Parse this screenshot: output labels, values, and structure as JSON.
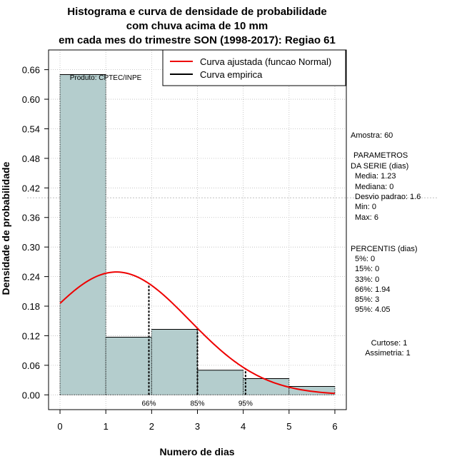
{
  "chart_data": {
    "type": "bar",
    "title_lines": [
      "Histograma e curva de densidade de probabilidade",
      "com chuva acima de 10 mm",
      "em cada mes do trimestre SON (1998-2017): Regiao 61"
    ],
    "xlabel": "Numero de dias",
    "ylabel": "Densidade de probabilidade",
    "xlim": [
      -0.25,
      6.25
    ],
    "ylim": [
      -0.03,
      0.7
    ],
    "x_ticks": [
      0,
      1,
      2,
      3,
      4,
      5,
      6
    ],
    "y_ticks": [
      0.0,
      0.06,
      0.12,
      0.18,
      0.24,
      0.3,
      0.36,
      0.42,
      0.48,
      0.54,
      0.6,
      0.66
    ],
    "y_tick_labels": [
      "0.00",
      "0.06",
      "0.12",
      "0.18",
      "0.24",
      "0.30",
      "0.36",
      "0.42",
      "0.48",
      "0.54",
      "0.60",
      "0.66"
    ],
    "bins": [
      {
        "from": 0,
        "to": 1,
        "density": 0.65
      },
      {
        "from": 1,
        "to": 2,
        "density": 0.117
      },
      {
        "from": 2,
        "to": 3,
        "density": 0.133
      },
      {
        "from": 3,
        "to": 4,
        "density": 0.05
      },
      {
        "from": 4,
        "to": 5,
        "density": 0.033
      },
      {
        "from": 5,
        "to": 6,
        "density": 0.017
      }
    ],
    "normal_fit": {
      "mean": 1.23,
      "sd": 1.6,
      "x_from": 0,
      "x_to": 6
    },
    "percentile_markers": [
      {
        "label": "66%",
        "x": 1.94
      },
      {
        "label": "85%",
        "x": 3
      },
      {
        "label": "95%",
        "x": 4.05
      }
    ],
    "reference_line_y": 0.4,
    "legend": [
      {
        "label": "Curva ajustada (funcao Normal)",
        "color": "#ee0000"
      },
      {
        "label": "Curva empirica",
        "color": "#000000"
      }
    ],
    "credit": "Produto: CPTEC/INPE"
  },
  "colors": {
    "bar_fill": "#b4cdcd",
    "curve": "#ee0000",
    "grid": "#bbbbbb"
  },
  "side_panel": {
    "sample": "Amostra: 60",
    "params_title_1": "PARAMETROS",
    "params_title_2": "DA SERIE (dias)",
    "params": [
      "Media: 1.23",
      "Mediana: 0",
      "Desvio padrao: 1.6",
      "Min: 0",
      "Max: 6"
    ],
    "percentis_title": "PERCENTIS (dias)",
    "percentis": [
      "5%: 0",
      "15%: 0",
      "33%: 0",
      "66%: 1.94",
      "85%: 3",
      "95%: 4.05"
    ],
    "kurtosis": "Curtose: 1",
    "skewness": "Assimetria: 1"
  }
}
